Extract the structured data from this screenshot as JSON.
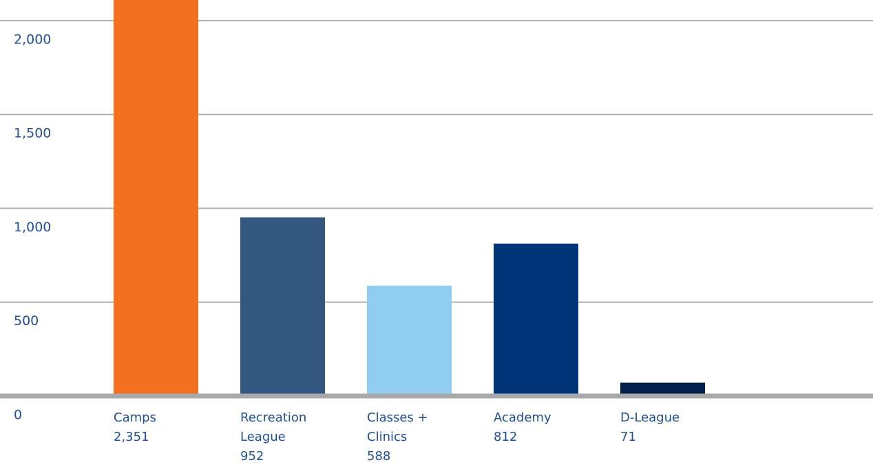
{
  "chart_data": {
    "type": "bar",
    "categories": [
      "Camps",
      "Recreation League",
      "Classes + Clinics",
      "Academy",
      "D-League"
    ],
    "values": [
      2351,
      952,
      588,
      812,
      71
    ],
    "value_labels": [
      "2,351",
      "952",
      "588",
      "812",
      "71"
    ],
    "colors": [
      "#f37021",
      "#34577f",
      "#90cdef",
      "#003478",
      "#00204a"
    ],
    "ylim": [
      0,
      2110
    ],
    "yticks": [
      0,
      500,
      {
        "value": 1000,
        "label": "1,000"
      },
      {
        "value": 1500,
        "label": "1,500"
      },
      {
        "value": 2000,
        "label": "2,000"
      }
    ],
    "grid": true
  }
}
